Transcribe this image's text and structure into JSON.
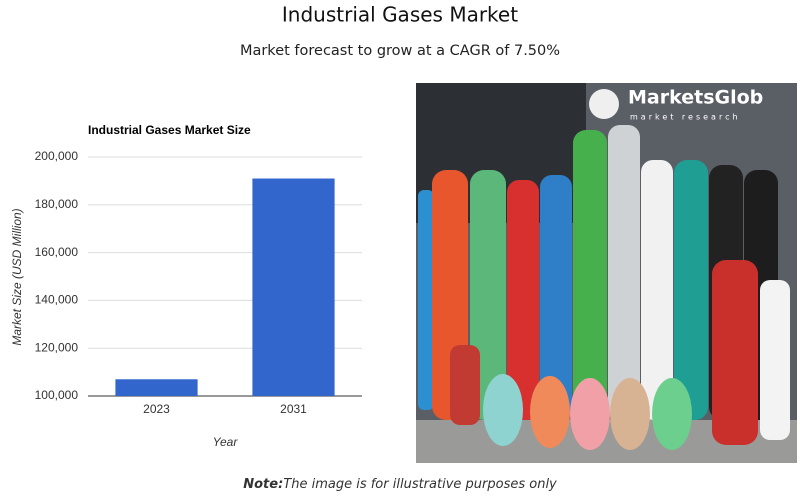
{
  "header": {
    "title": "Industrial Gases Market",
    "subtitle": "Market forecast to grow at a CAGR of 7.50%"
  },
  "chart_data": {
    "type": "bar",
    "title": "Industrial Gases Market Size",
    "x_label": "Year",
    "y_label": "Market Size (USD Million)",
    "categories": [
      "2023",
      "2031"
    ],
    "values": [
      107000,
      191000
    ],
    "color": "#3366cc",
    "ylim": [
      100000,
      200000
    ],
    "yticks": [
      {
        "value": 100000,
        "label": "100,000"
      },
      {
        "value": 120000,
        "label": "120,000"
      },
      {
        "value": 140000,
        "label": "140,000"
      },
      {
        "value": 160000,
        "label": "160,000"
      },
      {
        "value": 180000,
        "label": "180,000"
      },
      {
        "value": 200000,
        "label": "200,000"
      }
    ],
    "grid": true
  },
  "image": {
    "logo_name": "MarketsGlob",
    "logo_tagline": "market research"
  },
  "note": {
    "label": "Note:",
    "text": "The image is for illustrative purposes only"
  }
}
